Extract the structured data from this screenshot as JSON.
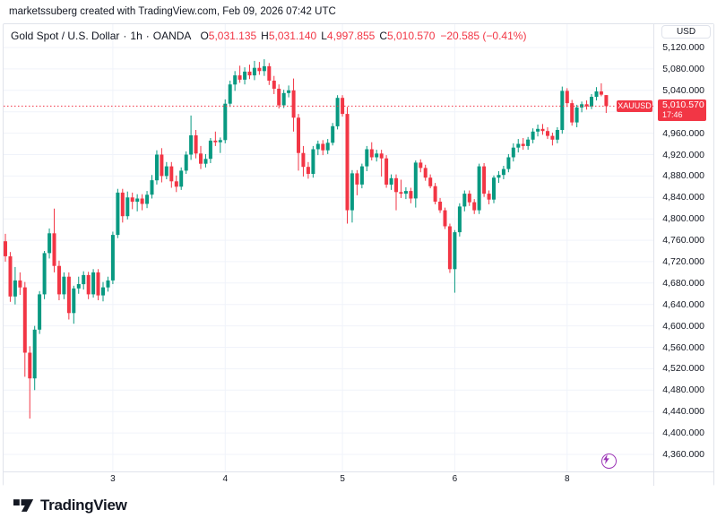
{
  "attribution": "marketssuberg created with TradingView.com, Feb 09, 2026 07:42 UTC",
  "header": {
    "title": "Gold Spot / U.S. Dollar",
    "separator": "·",
    "interval": "1h",
    "exchange": "OANDA",
    "ohlc": {
      "o": {
        "label": "O",
        "value": "5,031.135"
      },
      "h": {
        "label": "H",
        "value": "5,031.140"
      },
      "l": {
        "label": "L",
        "value": "4,997.855"
      },
      "c": {
        "label": "C",
        "value": "5,010.570"
      }
    },
    "change": "−20.585 (−0.41%)"
  },
  "price_scale": {
    "currency_button": "USD",
    "ticks": [
      {
        "label": "5,120.000",
        "value": 5120
      },
      {
        "label": "5,080.000",
        "value": 5080
      },
      {
        "label": "5,040.000",
        "value": 5040
      },
      {
        "label": "4,960.000",
        "value": 4960
      },
      {
        "label": "4,920.000",
        "value": 4920
      },
      {
        "label": "4,880.000",
        "value": 4880
      },
      {
        "label": "4,840.000",
        "value": 4840
      },
      {
        "label": "4,800.000",
        "value": 4800
      },
      {
        "label": "4,760.000",
        "value": 4760
      },
      {
        "label": "4,720.000",
        "value": 4720
      },
      {
        "label": "4,680.000",
        "value": 4680
      },
      {
        "label": "4,640.000",
        "value": 4640
      },
      {
        "label": "4,600.000",
        "value": 4600
      },
      {
        "label": "4,560.000",
        "value": 4560
      },
      {
        "label": "4,520.000",
        "value": 4520
      },
      {
        "label": "4,480.000",
        "value": 4480
      },
      {
        "label": "4,440.000",
        "value": 4440
      },
      {
        "label": "4,400.000",
        "value": 4400
      },
      {
        "label": "4,360.000",
        "value": 4360
      }
    ],
    "current": {
      "symbol": "XAUUSD",
      "price": "5,010.570",
      "time": "17:46"
    }
  },
  "time_scale": {
    "ticks": [
      {
        "label": "3",
        "bar_index": 22
      },
      {
        "label": "4",
        "bar_index": 45
      },
      {
        "label": "5",
        "bar_index": 69
      },
      {
        "label": "6",
        "bar_index": 92
      },
      {
        "label": "8",
        "bar_index": 115
      }
    ]
  },
  "logo": {
    "text": "TradingView"
  },
  "colors": {
    "up": "#089981",
    "down": "#F23645",
    "grid": "#f0f3fa",
    "border": "#e0e3eb",
    "text": "#131722",
    "accent_purple": "#9c36b6",
    "price_line": "#F23645"
  },
  "chart_data": {
    "type": "candlestick",
    "title": "Gold Spot / U.S. Dollar",
    "symbol": "XAUUSD",
    "exchange": "OANDA",
    "interval": "1h",
    "unit": "USD",
    "y_axis": {
      "min": 4360,
      "max": 5120,
      "tick_step": 40
    },
    "current_price": 5010.57,
    "current_time_label": "17:46",
    "last_bar": {
      "open": 5031.135,
      "high": 5031.14,
      "low": 4997.855,
      "close": 5010.57,
      "change": -20.585,
      "change_pct": -0.41
    },
    "candles": [
      [
        4758,
        4772,
        4720,
        4730
      ],
      [
        4730,
        4738,
        4645,
        4655
      ],
      [
        4655,
        4710,
        4640,
        4685
      ],
      [
        4685,
        4700,
        4658,
        4672
      ],
      [
        4672,
        4682,
        4505,
        4550
      ],
      [
        4550,
        4562,
        4427,
        4502
      ],
      [
        4502,
        4600,
        4480,
        4593
      ],
      [
        4593,
        4665,
        4585,
        4659
      ],
      [
        4659,
        4740,
        4650,
        4736
      ],
      [
        4736,
        4782,
        4726,
        4773
      ],
      [
        4773,
        4819,
        4700,
        4712
      ],
      [
        4712,
        4722,
        4648,
        4659
      ],
      [
        4659,
        4700,
        4650,
        4692
      ],
      [
        4692,
        4700,
        4612,
        4624
      ],
      [
        4624,
        4675,
        4604,
        4670
      ],
      [
        4670,
        4692,
        4660,
        4678
      ],
      [
        4678,
        4702,
        4668,
        4695
      ],
      [
        4695,
        4701,
        4650,
        4659
      ],
      [
        4659,
        4706,
        4653,
        4700
      ],
      [
        4700,
        4706,
        4648,
        4657
      ],
      [
        4657,
        4682,
        4646,
        4672
      ],
      [
        4672,
        4692,
        4664,
        4685
      ],
      [
        4685,
        4776,
        4678,
        4770
      ],
      [
        4770,
        4856,
        4764,
        4849
      ],
      [
        4849,
        4856,
        4793,
        4805
      ],
      [
        4805,
        4851,
        4799,
        4840
      ],
      [
        4840,
        4849,
        4818,
        4832
      ],
      [
        4832,
        4846,
        4814,
        4838
      ],
      [
        4838,
        4846,
        4816,
        4828
      ],
      [
        4828,
        4852,
        4820,
        4845
      ],
      [
        4845,
        4882,
        4838,
        4872
      ],
      [
        4872,
        4928,
        4864,
        4920
      ],
      [
        4920,
        4932,
        4868,
        4880
      ],
      [
        4880,
        4906,
        4874,
        4898
      ],
      [
        4898,
        4906,
        4858,
        4870
      ],
      [
        4870,
        4881,
        4850,
        4860
      ],
      [
        4860,
        4896,
        4854,
        4890
      ],
      [
        4890,
        4926,
        4884,
        4920
      ],
      [
        4920,
        4993,
        4910,
        4956
      ],
      [
        4956,
        4966,
        4913,
        4922
      ],
      [
        4922,
        4936,
        4893,
        4903
      ],
      [
        4903,
        4921,
        4896,
        4912
      ],
      [
        4912,
        4951,
        4904,
        4946
      ],
      [
        4946,
        4963,
        4936,
        4943
      ],
      [
        4943,
        4952,
        4923,
        4947
      ],
      [
        4947,
        5023,
        4941,
        5015
      ],
      [
        5015,
        5058,
        5009,
        5051
      ],
      [
        5051,
        5076,
        5039,
        5068
      ],
      [
        5068,
        5086,
        5054,
        5060
      ],
      [
        5060,
        5083,
        5051,
        5075
      ],
      [
        5075,
        5088,
        5061,
        5068
      ],
      [
        5068,
        5095,
        5059,
        5082
      ],
      [
        5082,
        5093,
        5069,
        5076
      ],
      [
        5076,
        5098,
        5067,
        5085
      ],
      [
        5085,
        5091,
        5050,
        5058
      ],
      [
        5058,
        5067,
        5033,
        5043
      ],
      [
        5043,
        5051,
        5006,
        5012
      ],
      [
        5012,
        5041,
        5007,
        5035
      ],
      [
        5035,
        5049,
        5027,
        5040
      ],
      [
        5040,
        5062,
        4963,
        4989
      ],
      [
        4989,
        4996,
        4890,
        4923
      ],
      [
        4923,
        4936,
        4879,
        4897
      ],
      [
        4897,
        4906,
        4875,
        4884
      ],
      [
        4884,
        4936,
        4877,
        4930
      ],
      [
        4930,
        4946,
        4919,
        4940
      ],
      [
        4940,
        4947,
        4919,
        4928
      ],
      [
        4928,
        4949,
        4921,
        4942
      ],
      [
        4942,
        4979,
        4937,
        4973
      ],
      [
        4973,
        5031,
        4967,
        5026
      ],
      [
        5026,
        5031,
        4991,
        4996
      ],
      [
        4996,
        5009,
        4791,
        4816
      ],
      [
        4816,
        4891,
        4793,
        4885
      ],
      [
        4885,
        4891,
        4844,
        4864
      ],
      [
        4864,
        4903,
        4857,
        4898
      ],
      [
        4898,
        4936,
        4889,
        4930
      ],
      [
        4930,
        4943,
        4909,
        4915
      ],
      [
        4915,
        4929,
        4907,
        4922
      ],
      [
        4922,
        4929,
        4879,
        4913
      ],
      [
        4913,
        4919,
        4858,
        4864
      ],
      [
        4864,
        4883,
        4854,
        4876
      ],
      [
        4876,
        4883,
        4816,
        4850
      ],
      [
        4850,
        4873,
        4839,
        4847
      ],
      [
        4847,
        4859,
        4837,
        4852
      ],
      [
        4852,
        4858,
        4829,
        4838
      ],
      [
        4838,
        4909,
        4821,
        4905
      ],
      [
        4905,
        4911,
        4887,
        4895
      ],
      [
        4895,
        4901,
        4871,
        4877
      ],
      [
        4877,
        4883,
        4857,
        4861
      ],
      [
        4861,
        4867,
        4827,
        4832
      ],
      [
        4832,
        4839,
        4811,
        4816
      ],
      [
        4816,
        4821,
        4781,
        4786
      ],
      [
        4786,
        4791,
        4699,
        4706
      ],
      [
        4706,
        4779,
        4662,
        4775
      ],
      [
        4775,
        4829,
        4767,
        4823
      ],
      [
        4823,
        4853,
        4814,
        4847
      ],
      [
        4847,
        4853,
        4824,
        4831
      ],
      [
        4831,
        4837,
        4809,
        4816
      ],
      [
        4816,
        4903,
        4809,
        4898
      ],
      [
        4898,
        4904,
        4841,
        4847
      ],
      [
        4847,
        4853,
        4827,
        4836
      ],
      [
        4836,
        4881,
        4829,
        4877
      ],
      [
        4877,
        4889,
        4867,
        4882
      ],
      [
        4882,
        4899,
        4874,
        4893
      ],
      [
        4893,
        4921,
        4887,
        4915
      ],
      [
        4915,
        4941,
        4907,
        4933
      ],
      [
        4933,
        4949,
        4924,
        4940
      ],
      [
        4940,
        4951,
        4929,
        4936
      ],
      [
        4936,
        4953,
        4929,
        4948
      ],
      [
        4948,
        4969,
        4941,
        4963
      ],
      [
        4963,
        4976,
        4954,
        4968
      ],
      [
        4968,
        4977,
        4957,
        4964
      ],
      [
        4964,
        4971,
        4949,
        4955
      ],
      [
        4955,
        4961,
        4937,
        4948
      ],
      [
        4948,
        4971,
        4941,
        4966
      ],
      [
        4966,
        5047,
        4959,
        5039
      ],
      [
        5039,
        5044,
        5009,
        5016
      ],
      [
        5016,
        5022,
        4974,
        4980
      ],
      [
        4980,
        5013,
        4971,
        5008
      ],
      [
        5008,
        5019,
        4999,
        5014
      ],
      [
        5014,
        5021,
        5004,
        5010
      ],
      [
        5010,
        5033,
        5005,
        5028
      ],
      [
        5028,
        5046,
        5021,
        5038
      ],
      [
        5038,
        5053,
        5029,
        5032
      ],
      [
        5031.135,
        5031.14,
        4997.855,
        5010.57
      ]
    ]
  }
}
